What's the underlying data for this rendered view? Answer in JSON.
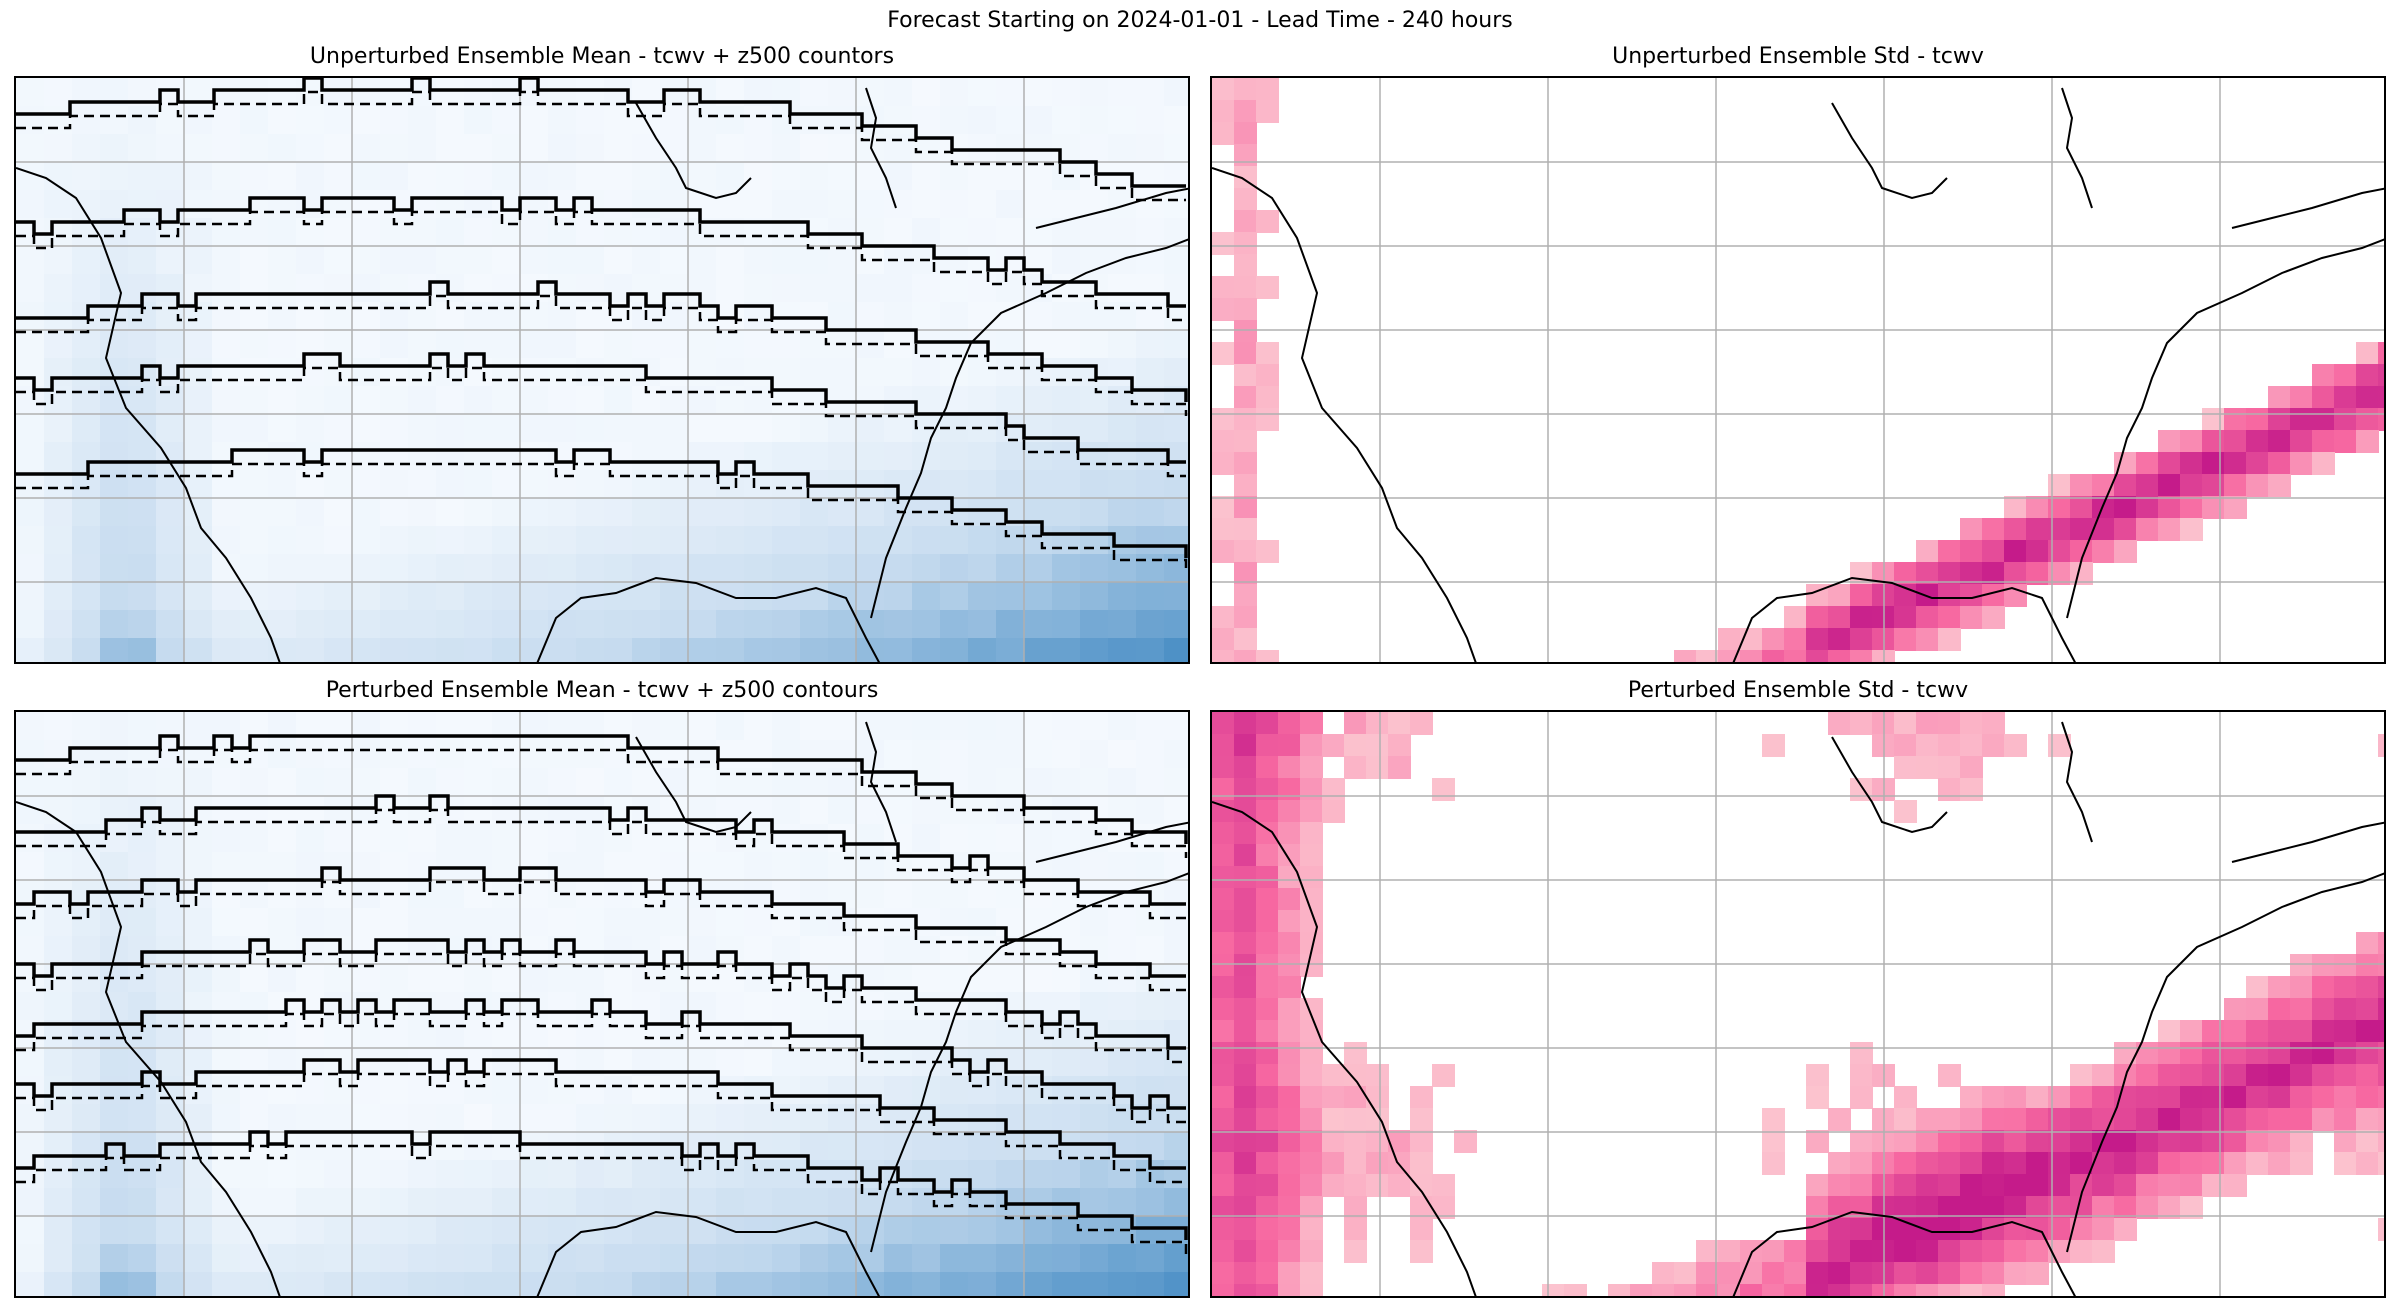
{
  "figure": {
    "suptitle": "Forecast Starting on 2024-01-01 - Lead Time - 240 hours"
  },
  "panels": [
    {
      "title": "Unperturbed Ensemble Mean - tcwv + z500 countors",
      "variable": "tcwv",
      "overlay": "z500 contours",
      "colormap": "Blues"
    },
    {
      "title": "Unperturbed Ensemble Std - tcwv",
      "variable": "tcwv std",
      "colormap": "RdPu"
    },
    {
      "title": "Perturbed Ensemble Mean - tcwv + z500 contours",
      "variable": "tcwv",
      "overlay": "z500 contours",
      "colormap": "Blues"
    },
    {
      "title": "Perturbed Ensemble Std - tcwv",
      "variable": "tcwv std",
      "colormap": "RdPu"
    }
  ],
  "colors": {
    "blues_low": "#f7fbff",
    "blues_mid": "#c6dbef",
    "blues_high": "#2f7ebc",
    "rdpu_low": "#fde0dd",
    "rdpu_mid": "#f768a1",
    "rdpu_high": "#c51b8a",
    "gridline": "#b0b0b0",
    "coastline": "#000000"
  }
}
